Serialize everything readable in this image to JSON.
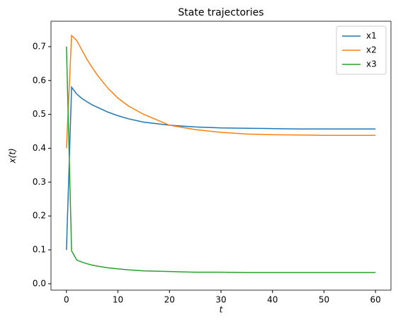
{
  "chart_data": {
    "type": "line",
    "title": "State trajectories",
    "xlabel": "t",
    "ylabel": "x(t)",
    "x": [
      0,
      1,
      2,
      3,
      4,
      5,
      6,
      8,
      10,
      12,
      15,
      20,
      25,
      30,
      35,
      40,
      45,
      50,
      55,
      60
    ],
    "series": [
      {
        "name": "x1",
        "color": "#1f77b4",
        "values": [
          0.1,
          0.58,
          0.56,
          0.547,
          0.537,
          0.528,
          0.521,
          0.507,
          0.496,
          0.487,
          0.477,
          0.468,
          0.463,
          0.46,
          0.459,
          0.458,
          0.457,
          0.457,
          0.457,
          0.457
        ]
      },
      {
        "name": "x2",
        "color": "#ff7f0e",
        "values": [
          0.4,
          0.733,
          0.718,
          0.69,
          0.662,
          0.638,
          0.616,
          0.578,
          0.548,
          0.525,
          0.5,
          0.468,
          0.455,
          0.447,
          0.442,
          0.44,
          0.439,
          0.438,
          0.438,
          0.438
        ]
      },
      {
        "name": "x3",
        "color": "#2ca02c",
        "values": [
          0.7,
          0.097,
          0.07,
          0.064,
          0.059,
          0.055,
          0.052,
          0.047,
          0.044,
          0.041,
          0.038,
          0.036,
          0.034,
          0.034,
          0.033,
          0.033,
          0.033,
          0.033,
          0.033,
          0.033
        ]
      }
    ],
    "xlim": [
      -3,
      63
    ],
    "xticks": [
      0,
      10,
      20,
      30,
      40,
      50,
      60
    ],
    "ylim": [
      -0.019,
      0.775
    ],
    "yticks": [
      {
        "value": 0,
        "label": "0.0"
      },
      0.1,
      0.2,
      0.3,
      0.4,
      0.5,
      0.6,
      0.7
    ],
    "legend": "upper right"
  }
}
